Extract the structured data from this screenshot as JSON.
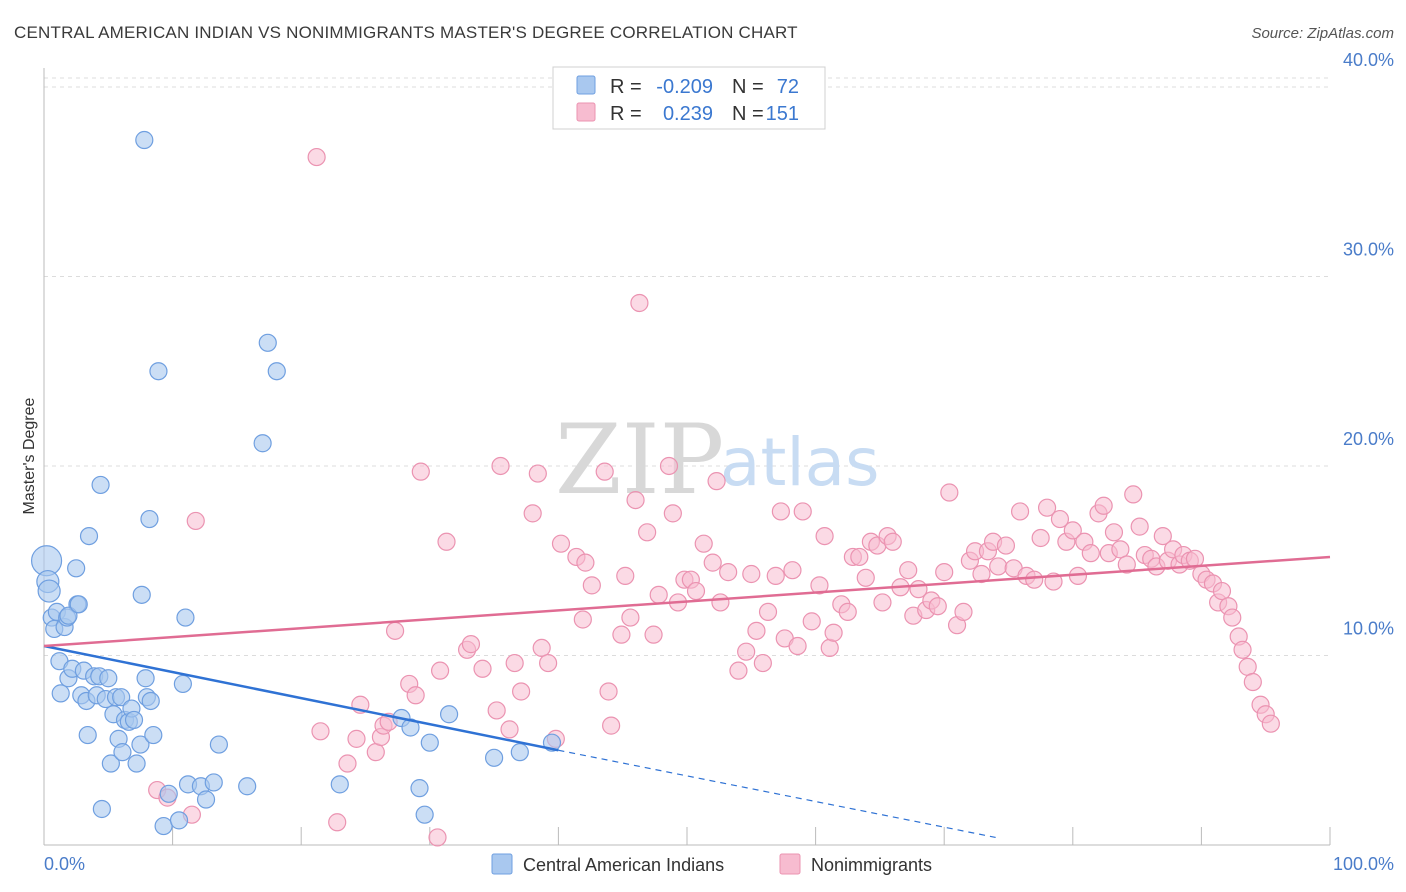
{
  "title": "CENTRAL AMERICAN INDIAN VS NONIMMIGRANTS MASTER'S DEGREE CORRELATION CHART",
  "source": "Source: ZipAtlas.com",
  "watermark": {
    "zip": "ZIP",
    "atlas": "atlas"
  },
  "colors": {
    "blue_fill": "#a9c8ef",
    "blue_stroke": "#6f9fe0",
    "blue_line": "#2f72d4",
    "pink_fill": "#f7bcd0",
    "pink_stroke": "#eb93b1",
    "pink_line": "#e06c93",
    "tick_text": "#4a7cc9"
  },
  "legend_top": {
    "rows": [
      {
        "r_label": "R = ",
        "r_value": "-0.209",
        "n_label": "N = ",
        "n_value": "72"
      },
      {
        "r_label": "R = ",
        "r_value": " 0.239",
        "n_label": "N = ",
        "n_value": "151"
      }
    ]
  },
  "legend_bottom": [
    "Central American Indians",
    "Nonimmigrants"
  ],
  "chart_data": {
    "type": "scatter",
    "title": "CENTRAL AMERICAN INDIAN VS NONIMMIGRANTS MASTER'S DEGREE CORRELATION CHART",
    "xlabel": "",
    "ylabel": "Master's Degree",
    "xlim": [
      0,
      100
    ],
    "ylim": [
      0,
      41
    ],
    "x_ticks": [
      "0.0%",
      "100.0%"
    ],
    "y_ticks": [
      {
        "value": 10,
        "label": "10.0%"
      },
      {
        "value": 20,
        "label": "20.0%"
      },
      {
        "value": 30,
        "label": "30.0%"
      },
      {
        "value": 40,
        "label": "40.0%"
      }
    ],
    "grid": true,
    "legend_position": "top-center",
    "series": [
      {
        "name": "Central American Indians",
        "r": -0.209,
        "n": 72,
        "trend": {
          "x0": 0,
          "y0": 10.5,
          "x1": 40,
          "y1": 5.0,
          "dashed_to_x": 74,
          "dashed_to_y": 0.4
        },
        "points": [
          [
            0.2,
            15.0
          ],
          [
            0.3,
            13.9
          ],
          [
            0.4,
            13.4
          ],
          [
            0.6,
            12.0
          ],
          [
            0.8,
            11.4
          ],
          [
            1.0,
            12.3
          ],
          [
            1.2,
            9.7
          ],
          [
            1.3,
            8.0
          ],
          [
            1.6,
            11.5
          ],
          [
            1.8,
            12.0
          ],
          [
            1.9,
            8.8
          ],
          [
            2.2,
            9.3
          ],
          [
            2.5,
            14.6
          ],
          [
            2.6,
            12.7
          ],
          [
            2.9,
            7.9
          ],
          [
            3.1,
            9.2
          ],
          [
            3.3,
            7.6
          ],
          [
            3.4,
            5.8
          ],
          [
            3.5,
            16.3
          ],
          [
            3.9,
            8.9
          ],
          [
            4.1,
            7.9
          ],
          [
            4.3,
            8.9
          ],
          [
            4.4,
            19.0
          ],
          [
            4.5,
            1.9
          ],
          [
            4.8,
            7.7
          ],
          [
            5.0,
            8.8
          ],
          [
            5.2,
            4.3
          ],
          [
            5.4,
            6.9
          ],
          [
            5.6,
            7.8
          ],
          [
            5.8,
            5.6
          ],
          [
            6.0,
            7.8
          ],
          [
            6.1,
            4.9
          ],
          [
            6.3,
            6.6
          ],
          [
            6.6,
            6.5
          ],
          [
            6.8,
            7.2
          ],
          [
            7.0,
            6.6
          ],
          [
            7.2,
            4.3
          ],
          [
            7.5,
            5.3
          ],
          [
            7.6,
            13.2
          ],
          [
            7.8,
            37.2
          ],
          [
            7.9,
            8.8
          ],
          [
            8.0,
            7.8
          ],
          [
            8.2,
            17.2
          ],
          [
            8.3,
            7.6
          ],
          [
            8.5,
            5.8
          ],
          [
            8.9,
            25.0
          ],
          [
            9.3,
            1.0
          ],
          [
            9.7,
            2.7
          ],
          [
            10.5,
            1.3
          ],
          [
            10.8,
            8.5
          ],
          [
            11.0,
            12.0
          ],
          [
            11.2,
            3.2
          ],
          [
            12.2,
            3.1
          ],
          [
            12.6,
            2.4
          ],
          [
            13.2,
            3.3
          ],
          [
            13.6,
            5.3
          ],
          [
            15.8,
            3.1
          ],
          [
            17.0,
            21.2
          ],
          [
            17.4,
            26.5
          ],
          [
            18.1,
            25.0
          ],
          [
            23.0,
            3.2
          ],
          [
            27.8,
            6.7
          ],
          [
            28.5,
            6.2
          ],
          [
            29.2,
            3.0
          ],
          [
            29.6,
            1.6
          ],
          [
            30.0,
            5.4
          ],
          [
            31.5,
            6.9
          ],
          [
            35.0,
            4.6
          ],
          [
            37.0,
            4.9
          ],
          [
            39.5,
            5.4
          ],
          [
            1.9,
            12.1
          ],
          [
            2.7,
            12.7
          ]
        ]
      },
      {
        "name": "Nonimmigrants",
        "r": 0.239,
        "n": 151,
        "trend": {
          "x0": 0,
          "y0": 10.5,
          "x1": 100,
          "y1": 15.2
        },
        "points": [
          [
            8.8,
            2.9
          ],
          [
            9.6,
            2.5
          ],
          [
            11.5,
            1.6
          ],
          [
            11.8,
            17.1
          ],
          [
            21.5,
            6.0
          ],
          [
            21.2,
            36.3
          ],
          [
            22.8,
            1.2
          ],
          [
            23.6,
            4.3
          ],
          [
            24.3,
            5.6
          ],
          [
            24.6,
            7.4
          ],
          [
            25.8,
            4.9
          ],
          [
            26.2,
            5.7
          ],
          [
            26.4,
            6.3
          ],
          [
            26.8,
            6.5
          ],
          [
            27.3,
            11.3
          ],
          [
            28.4,
            8.5
          ],
          [
            28.9,
            7.9
          ],
          [
            29.3,
            19.7
          ],
          [
            30.6,
            0.4
          ],
          [
            30.8,
            9.2
          ],
          [
            31.3,
            16.0
          ],
          [
            32.9,
            10.3
          ],
          [
            33.2,
            10.6
          ],
          [
            34.1,
            9.3
          ],
          [
            35.2,
            7.1
          ],
          [
            35.5,
            20.0
          ],
          [
            36.2,
            6.1
          ],
          [
            36.6,
            9.6
          ],
          [
            37.1,
            8.1
          ],
          [
            38.0,
            17.5
          ],
          [
            38.4,
            19.6
          ],
          [
            38.7,
            10.4
          ],
          [
            39.2,
            9.6
          ],
          [
            39.8,
            5.6
          ],
          [
            40.2,
            15.9
          ],
          [
            41.4,
            15.2
          ],
          [
            41.9,
            11.9
          ],
          [
            42.1,
            14.9
          ],
          [
            42.6,
            13.7
          ],
          [
            43.6,
            19.7
          ],
          [
            43.9,
            8.1
          ],
          [
            44.1,
            6.3
          ],
          [
            44.9,
            11.1
          ],
          [
            45.2,
            14.2
          ],
          [
            45.6,
            12.0
          ],
          [
            46.0,
            18.2
          ],
          [
            46.3,
            28.6
          ],
          [
            46.9,
            16.5
          ],
          [
            47.4,
            11.1
          ],
          [
            47.8,
            13.2
          ],
          [
            48.6,
            20.0
          ],
          [
            48.9,
            17.5
          ],
          [
            49.3,
            12.8
          ],
          [
            49.8,
            14.0
          ],
          [
            50.3,
            14.0
          ],
          [
            50.7,
            13.4
          ],
          [
            51.3,
            15.9
          ],
          [
            52.0,
            14.9
          ],
          [
            52.3,
            19.2
          ],
          [
            52.6,
            12.8
          ],
          [
            53.2,
            14.4
          ],
          [
            54.0,
            9.2
          ],
          [
            54.6,
            10.2
          ],
          [
            55.0,
            14.3
          ],
          [
            55.4,
            11.3
          ],
          [
            55.9,
            9.6
          ],
          [
            56.3,
            12.3
          ],
          [
            56.9,
            14.2
          ],
          [
            57.3,
            17.6
          ],
          [
            57.6,
            10.9
          ],
          [
            58.2,
            14.5
          ],
          [
            58.6,
            10.5
          ],
          [
            59.0,
            17.6
          ],
          [
            59.7,
            11.8
          ],
          [
            60.3,
            13.7
          ],
          [
            60.7,
            16.3
          ],
          [
            61.1,
            10.4
          ],
          [
            61.4,
            11.2
          ],
          [
            62.0,
            12.7
          ],
          [
            62.5,
            12.3
          ],
          [
            62.9,
            15.2
          ],
          [
            63.4,
            15.2
          ],
          [
            63.9,
            14.1
          ],
          [
            64.3,
            16.0
          ],
          [
            64.8,
            15.8
          ],
          [
            65.2,
            12.8
          ],
          [
            65.6,
            16.3
          ],
          [
            66.0,
            16.0
          ],
          [
            66.6,
            13.6
          ],
          [
            67.2,
            14.5
          ],
          [
            67.6,
            12.1
          ],
          [
            68.0,
            13.5
          ],
          [
            68.6,
            12.4
          ],
          [
            69.0,
            12.9
          ],
          [
            69.5,
            12.6
          ],
          [
            70.0,
            14.4
          ],
          [
            70.4,
            18.6
          ],
          [
            71.0,
            11.6
          ],
          [
            71.5,
            12.3
          ],
          [
            72.0,
            15.0
          ],
          [
            72.4,
            15.5
          ],
          [
            72.9,
            14.3
          ],
          [
            73.4,
            15.5
          ],
          [
            73.8,
            16.0
          ],
          [
            74.2,
            14.7
          ],
          [
            74.8,
            15.8
          ],
          [
            75.4,
            14.6
          ],
          [
            75.9,
            17.6
          ],
          [
            76.4,
            14.2
          ],
          [
            77.0,
            14.0
          ],
          [
            77.5,
            16.2
          ],
          [
            78.0,
            17.8
          ],
          [
            78.5,
            13.9
          ],
          [
            79.0,
            17.2
          ],
          [
            79.5,
            16.0
          ],
          [
            80.0,
            16.6
          ],
          [
            80.4,
            14.2
          ],
          [
            80.9,
            16.0
          ],
          [
            81.4,
            15.4
          ],
          [
            82.0,
            17.5
          ],
          [
            82.4,
            17.9
          ],
          [
            82.8,
            15.4
          ],
          [
            83.2,
            16.5
          ],
          [
            83.7,
            15.6
          ],
          [
            84.2,
            14.8
          ],
          [
            84.7,
            18.5
          ],
          [
            85.2,
            16.8
          ],
          [
            85.6,
            15.3
          ],
          [
            86.1,
            15.1
          ],
          [
            86.5,
            14.7
          ],
          [
            87.0,
            16.3
          ],
          [
            87.4,
            15.0
          ],
          [
            87.8,
            15.6
          ],
          [
            88.3,
            14.8
          ],
          [
            88.6,
            15.3
          ],
          [
            89.1,
            15.0
          ],
          [
            89.5,
            15.1
          ],
          [
            90.0,
            14.3
          ],
          [
            90.4,
            14.0
          ],
          [
            90.9,
            13.8
          ],
          [
            91.3,
            12.8
          ],
          [
            91.6,
            13.4
          ],
          [
            92.1,
            12.6
          ],
          [
            92.4,
            12.0
          ],
          [
            92.9,
            11.0
          ],
          [
            93.2,
            10.3
          ],
          [
            93.6,
            9.4
          ],
          [
            94.0,
            8.6
          ],
          [
            94.6,
            7.4
          ],
          [
            95.0,
            6.9
          ],
          [
            95.4,
            6.4
          ]
        ]
      }
    ]
  }
}
